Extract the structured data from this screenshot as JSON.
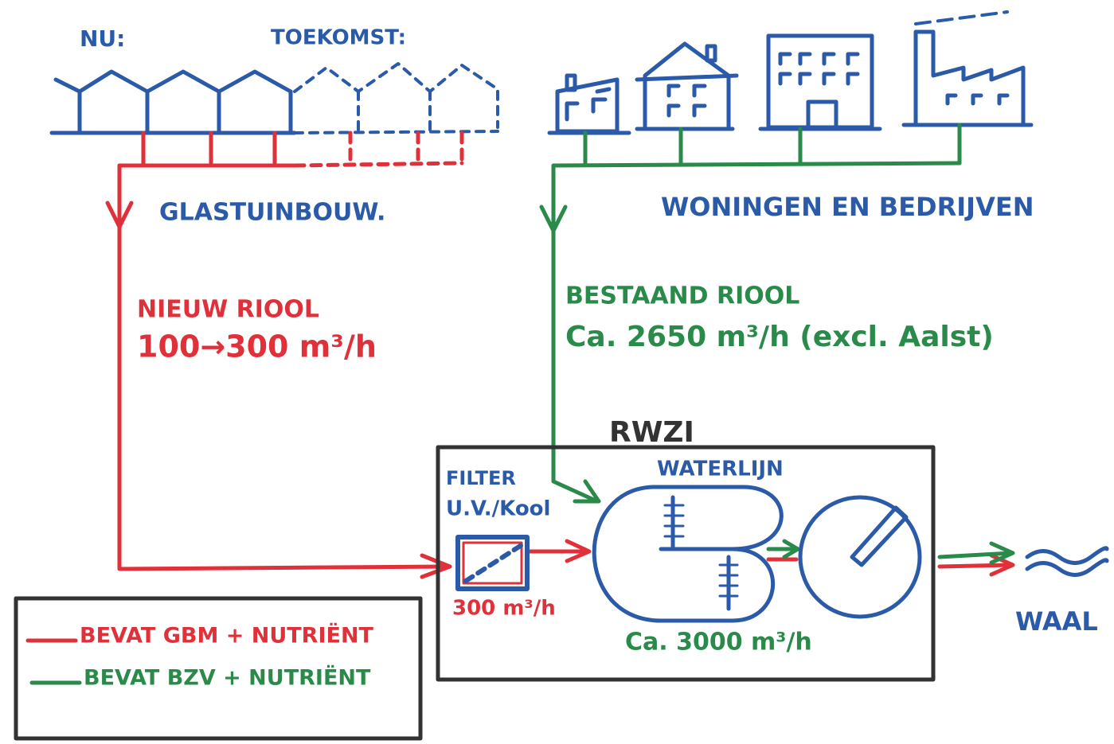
{
  "labels": {
    "now": "NU:",
    "future": "TOEKOMST:",
    "greenhouse": "GLASTUINBOUW.",
    "housing": "WONINGEN EN BEDRIJVEN",
    "new_sewer": "NIEUW RIOOL",
    "new_sewer_flow": "100→300 m³/h",
    "existing_sewer": "BESTAAND RIOOL",
    "existing_sewer_flow": "Ca. 2650 m³/h (excl. Aalst)",
    "plant": "RWZI",
    "filter": "FILTER",
    "filter_type": "U.V./Kool",
    "filter_flow": "300 m³/h",
    "waterline": "WATERLIJN",
    "waterline_flow": "Ca. 3000 m³/h",
    "river": "WAAL"
  },
  "legend": [
    "BEVAT GBM + NUTRIËNT",
    "BEVAT BZV + NUTRIËNT"
  ]
}
